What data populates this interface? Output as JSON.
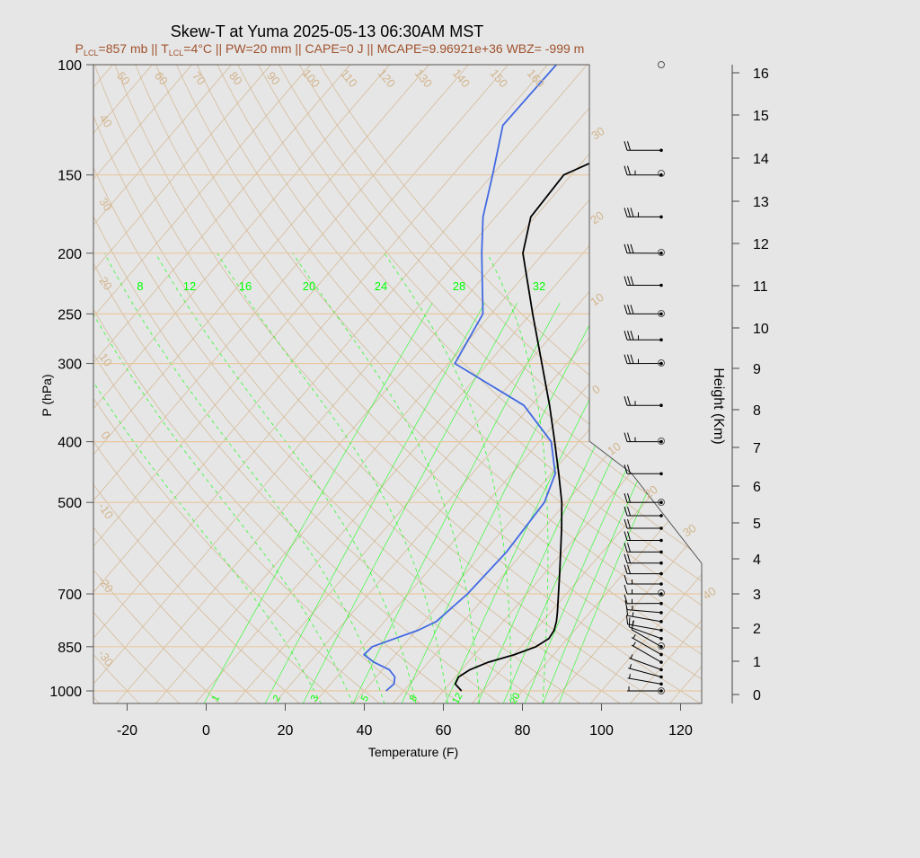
{
  "title": "Skew-T at Yuma 2025-05-13 06:30AM MST",
  "subtitle": {
    "p_prefix": "P",
    "p_sub": "LCL",
    "p_value": "=857 mb || T",
    "t_sub": "LCL",
    "rest": "=4°C || PW=20 mm || CAPE=0 J || MCAPE=9.96921e+36 WBZ= -999 m"
  },
  "colors": {
    "background": "#e6e6e6",
    "temperature": "#000000",
    "dewpoint": "#4169e1",
    "isotherm_adiabat": "#d2b48c",
    "mixing_ratio": "#00ff00",
    "subtitle": "#a0522d",
    "isobar": "#e8c8a0"
  },
  "chart_data": {
    "type": "skew-t",
    "title": "Skew-T at Yuma 2025-05-13 06:30AM MST",
    "xlabel": "Temperature (F)",
    "ylabel": "P (hPa)",
    "y2label": "Height (Km)",
    "xlim": [
      -28,
      125
    ],
    "ylim_hpa": [
      1050,
      100
    ],
    "x_ticks": [
      -20,
      0,
      20,
      40,
      60,
      80,
      100,
      120
    ],
    "p_ticks": [
      100,
      150,
      200,
      250,
      300,
      400,
      500,
      700,
      850,
      1000
    ],
    "height_ticks_km": [
      0,
      1,
      2,
      3,
      4,
      5,
      6,
      7,
      8,
      9,
      10,
      11,
      12,
      13,
      14,
      15,
      16
    ],
    "top_isotherm_labels": [
      "50",
      "60",
      "70",
      "80",
      "90",
      "100",
      "110",
      "120",
      "130",
      "140",
      "150",
      "160"
    ],
    "left_isotherm_labels": [
      "40",
      "30",
      "20",
      "10",
      "0",
      "-10",
      "-20",
      "-30"
    ],
    "right_isotherm_labels": [
      "30",
      "20",
      "10",
      "0",
      "10",
      "20",
      "30",
      "40"
    ],
    "mixing_ratio_top_labels": [
      "8",
      "12",
      "16",
      "20",
      "24",
      "28",
      "32"
    ],
    "mixing_ratio_bottom_labels": [
      "1",
      "2",
      "3",
      "5",
      "8",
      "12",
      "20"
    ],
    "temperature_series": {
      "p": [
        1000,
        975,
        950,
        925,
        900,
        875,
        850,
        825,
        800,
        775,
        750,
        700,
        650,
        600,
        550,
        500,
        450,
        400,
        350,
        300,
        250,
        200,
        175,
        150,
        140,
        125,
        100
      ],
      "t": [
        64.6,
        61.5,
        60.8,
        62.1,
        65.1,
        70.1,
        73.8,
        75.3,
        74.8,
        73.5,
        71.8,
        68.0,
        63.9,
        59.4,
        54.5,
        48.9,
        41.9,
        33.9,
        24.7,
        13.6,
        0.5,
        -15.2,
        -21.1,
        -21.9,
        -15.5,
        -9.7,
        -0.2
      ]
    },
    "dewpoint_series": {
      "p": [
        1000,
        975,
        950,
        925,
        900,
        875,
        850,
        825,
        800,
        775,
        700,
        600,
        500,
        450,
        400,
        350,
        300,
        250,
        200,
        175,
        150,
        125,
        100
      ],
      "td": [
        45.5,
        46.0,
        44.7,
        41.7,
        36.2,
        32.0,
        32.4,
        36.3,
        40.4,
        43.1,
        45.0,
        45.7,
        44.5,
        41.0,
        33.0,
        18.2,
        -8.4,
        -12.1,
        -25.6,
        -33.2,
        -39.9,
        -48.1,
        -47.8
      ]
    },
    "wind_barbs": [
      {
        "p": 1000,
        "dir": 270,
        "kt": 5
      },
      {
        "p": 975,
        "dir": 280,
        "kt": 5
      },
      {
        "p": 950,
        "dir": 285,
        "kt": 5
      },
      {
        "p": 925,
        "dir": 290,
        "kt": 5
      },
      {
        "p": 900,
        "dir": 300,
        "kt": 5
      },
      {
        "p": 875,
        "dir": 300,
        "kt": 5
      },
      {
        "p": 850,
        "dir": 300,
        "kt": 10
      },
      {
        "p": 825,
        "dir": 290,
        "kt": 10
      },
      {
        "p": 800,
        "dir": 280,
        "kt": 15
      },
      {
        "p": 775,
        "dir": 280,
        "kt": 15
      },
      {
        "p": 750,
        "dir": 275,
        "kt": 15
      },
      {
        "p": 725,
        "dir": 270,
        "kt": 15
      },
      {
        "p": 700,
        "dir": 270,
        "kt": 15
      },
      {
        "p": 675,
        "dir": 270,
        "kt": 15
      },
      {
        "p": 650,
        "dir": 270,
        "kt": 20
      },
      {
        "p": 625,
        "dir": 270,
        "kt": 20
      },
      {
        "p": 600,
        "dir": 270,
        "kt": 20
      },
      {
        "p": 575,
        "dir": 270,
        "kt": 20
      },
      {
        "p": 550,
        "dir": 270,
        "kt": 20
      },
      {
        "p": 525,
        "dir": 270,
        "kt": 20
      },
      {
        "p": 500,
        "dir": 270,
        "kt": 20
      },
      {
        "p": 450,
        "dir": 270,
        "kt": 20
      },
      {
        "p": 400,
        "dir": 270,
        "kt": 25
      },
      {
        "p": 350,
        "dir": 270,
        "kt": 25
      },
      {
        "p": 300,
        "dir": 270,
        "kt": 35
      },
      {
        "p": 275,
        "dir": 270,
        "kt": 35
      },
      {
        "p": 250,
        "dir": 270,
        "kt": 30
      },
      {
        "p": 225,
        "dir": 270,
        "kt": 30
      },
      {
        "p": 200,
        "dir": 270,
        "kt": 30
      },
      {
        "p": 175,
        "dir": 270,
        "kt": 35
      },
      {
        "p": 150,
        "dir": 270,
        "kt": 25
      },
      {
        "p": 137,
        "dir": 270,
        "kt": 20
      }
    ],
    "legend": "none",
    "grid": true
  }
}
